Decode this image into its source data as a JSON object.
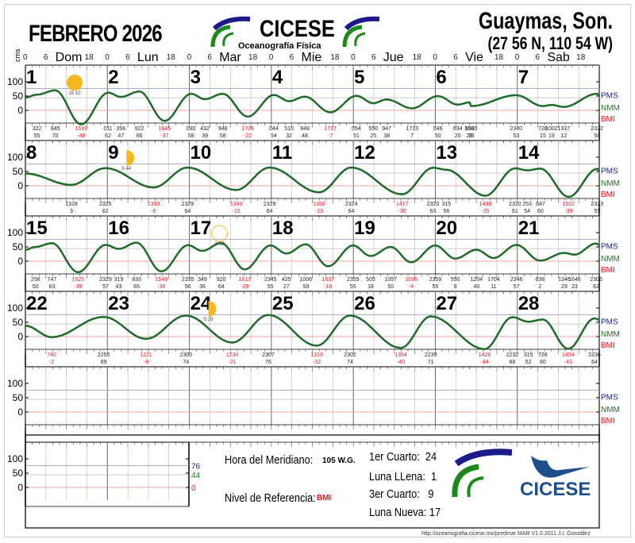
{
  "header": {
    "title": "FEBRERO 2026",
    "org": "CICESE",
    "org_sub": "Oceanografía Física",
    "location": "Guaymas, Son.",
    "coords": "(27 56 N, 110 54 W)",
    "y_unit": "cms",
    "days": [
      "Dom",
      "Lun",
      "Mar",
      "Mie",
      "Jue",
      "Vie",
      "Sab"
    ],
    "hour_ticks": [
      "0",
      "6",
      "18"
    ]
  },
  "legend": {
    "pms": "PMS",
    "nmm": "NMM",
    "bmi": "BMI"
  },
  "colors": {
    "pms": "#1a237e",
    "nmm": "#1b7a1b",
    "bmi": "#e8141e",
    "curve": "#1f6b2a",
    "moon": "#f5b820"
  },
  "info": {
    "meridian_label": "Hora del Meridiano:",
    "meridian_value": "105 W.G.",
    "ref_label": "Nivel de Referencia:",
    "ref_value": "BMI",
    "phases": [
      {
        "label": "1er Cuarto:",
        "day": "24"
      },
      {
        "label": "Luna LLena:",
        "day": "1"
      },
      {
        "label": "3er Cuarto:",
        "day": "9"
      },
      {
        "label": "Luna Nueva:",
        "day": "17"
      }
    ],
    "levels": {
      "pms": "76",
      "nmm": "44",
      "bmi": "0"
    },
    "logo_text": "CICESE"
  },
  "footer": "http://oceanografia.cicese.mx/predmar MAR V1.0 2011 J.I. González",
  "chart_data": {
    "type": "line",
    "title": "FEBRERO 2026 — Guaymas, Son. (27 56 N, 110 54 W)",
    "ylabel": "cms",
    "yticks": [
      0,
      50,
      100
    ],
    "reference_levels": {
      "PMS": 76,
      "NMM": 44,
      "BMI": 0
    },
    "weeks": [
      {
        "days": [
          1,
          2,
          3,
          4,
          5,
          6,
          7
        ],
        "extremes": [
          [
            "322",
            55
          ],
          [
            "845",
            70
          ],
          [
            "1619",
            -49
          ],
          [
            "011",
            62
          ],
          [
            "356",
            47
          ],
          [
            "922",
            66
          ],
          [
            "1645",
            -37
          ],
          [
            "030",
            58
          ],
          [
            "432",
            39
          ],
          [
            "948",
            58
          ],
          [
            "1706",
            -22
          ],
          [
            "044",
            54
          ],
          [
            "510",
            32
          ],
          [
            "948",
            48
          ],
          [
            "1717",
            -7
          ],
          [
            "054",
            51
          ],
          [
            "550",
            25
          ],
          [
            "947",
            38
          ],
          [
            "1713",
            7
          ],
          [
            "046",
            50
          ],
          [
            "634",
            20
          ],
          [
            "958",
            28
          ],
          [
            "1030",
            15
          ],
          [
            "2340",
            53
          ],
          [
            "728",
            15
          ],
          [
            "1002",
            19
          ],
          [
            "1337",
            12
          ],
          [
            "2322",
            58
          ]
        ]
      },
      {
        "days": [
          8,
          9,
          10,
          11,
          12,
          13,
          14
        ],
        "extremes": [
          [
            "1328",
            3
          ],
          [
            "2325",
            62
          ],
          [
            "1333",
            -6
          ],
          [
            "2329",
            64
          ],
          [
            "1343",
            -15
          ],
          [
            "2329",
            64
          ],
          [
            "1358",
            -23
          ],
          [
            "2324",
            64
          ],
          [
            "1417",
            -30
          ],
          [
            "2320",
            63
          ],
          [
            "315",
            56
          ],
          [
            "1439",
            -35
          ],
          [
            "2320",
            61
          ],
          [
            "253",
            54
          ],
          [
            "647",
            60
          ],
          [
            "1502",
            -39
          ],
          [
            "2323",
            59
          ]
        ]
      },
      {
        "days": [
          15,
          16,
          17,
          18,
          19,
          20,
          21
        ],
        "extremes": [
          [
            "258",
            50
          ],
          [
            "747",
            63
          ],
          [
            "1525",
            -39
          ],
          [
            "2329",
            57
          ],
          [
            "319",
            43
          ],
          [
            "833",
            65
          ],
          [
            "1549",
            -36
          ],
          [
            "2335",
            56
          ],
          [
            "349",
            36
          ],
          [
            "920",
            64
          ],
          [
            "1613",
            -29
          ],
          [
            "2345",
            55
          ],
          [
            "425",
            27
          ],
          [
            "1006",
            59
          ],
          [
            "1637",
            -18
          ],
          [
            "2355",
            55
          ],
          [
            "505",
            18
          ],
          [
            "1057",
            50
          ],
          [
            "1656",
            -4
          ],
          [
            "2359",
            55
          ],
          [
            "550",
            9
          ],
          [
            "1204",
            40
          ],
          [
            "1704",
            11
          ],
          [
            "2346",
            57
          ],
          [
            "638",
            2
          ],
          [
            "1346",
            29
          ],
          [
            "1646",
            23
          ],
          [
            "2305",
            62
          ]
        ]
      },
      {
        "days": [
          22,
          23,
          24,
          25,
          26,
          27,
          28
        ],
        "extremes": [
          [
            "740",
            -2
          ],
          [
            "2255",
            69
          ],
          [
            "1121",
            -8
          ],
          [
            "2300",
            74
          ],
          [
            "1234",
            -21
          ],
          [
            "2307",
            76
          ],
          [
            "1319",
            -32
          ],
          [
            "2302",
            74
          ],
          [
            "1354",
            -40
          ],
          [
            "2239",
            71
          ],
          [
            "1426",
            -44
          ],
          [
            "2232",
            68
          ],
          [
            "315",
            52
          ],
          [
            "728",
            60
          ],
          [
            "1454",
            -43
          ],
          [
            "2236",
            64
          ]
        ]
      }
    ],
    "moon_phases": [
      {
        "day": 1,
        "phase": "full",
        "time": "15 10"
      },
      {
        "day": 9,
        "phase": "third-quarter",
        "time": "5 44"
      },
      {
        "day": 17,
        "phase": "new",
        "time": "3 02"
      },
      {
        "day": 24,
        "phase": "first-quarter",
        "time": "5 29"
      }
    ]
  }
}
